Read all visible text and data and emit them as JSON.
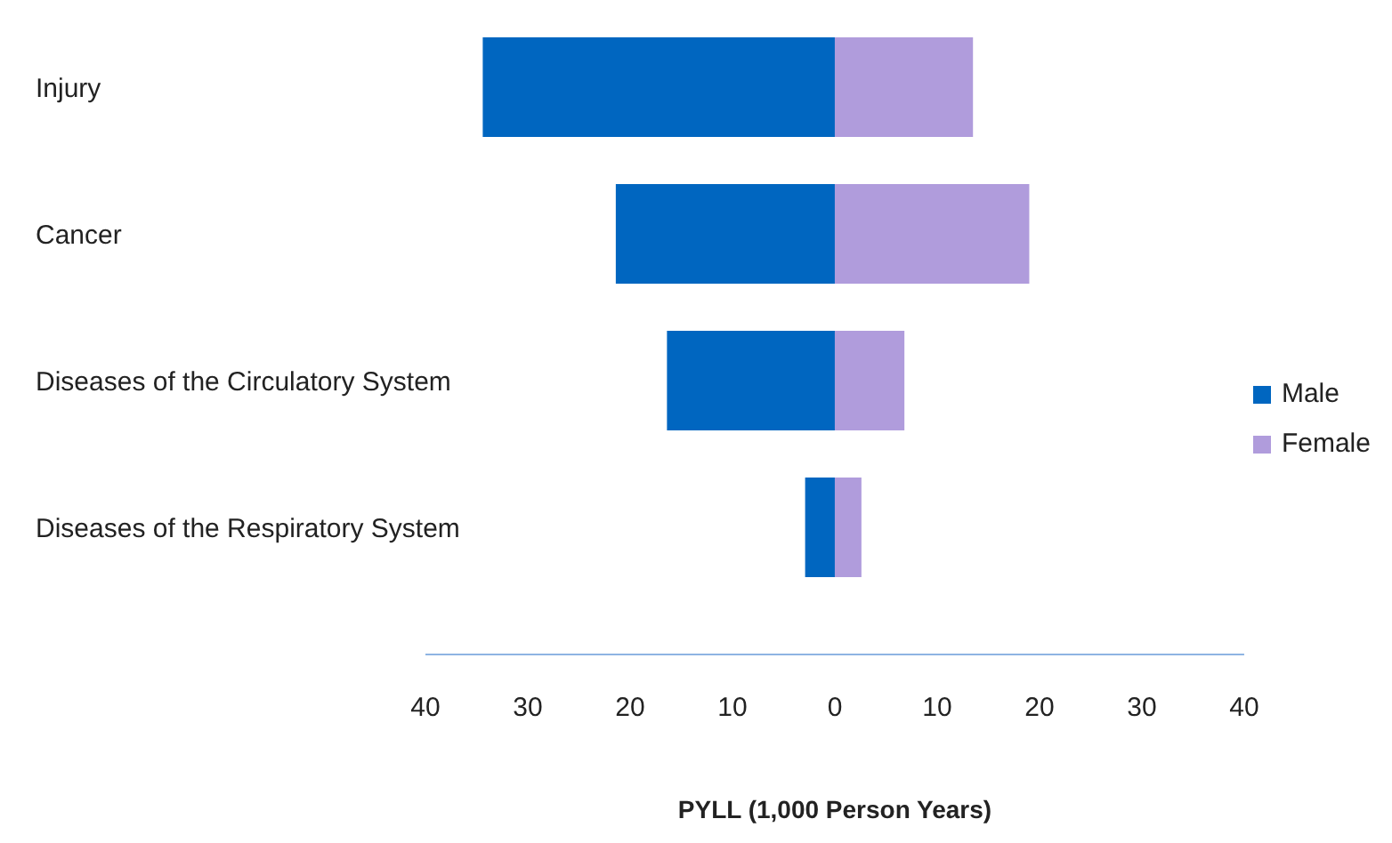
{
  "chart_data": {
    "type": "bar",
    "orientation": "horizontal",
    "stacked": true,
    "categories": [
      "Injury",
      "Cancer",
      "Diseases of the Circulatory System",
      "Diseases of the Respiratory System"
    ],
    "series": [
      {
        "name": "Male",
        "color": "#0066c0",
        "values": [
          -34.4,
          -21.4,
          -16.4,
          -2.9
        ]
      },
      {
        "name": "Female",
        "color": "#b09cdc",
        "values": [
          13.5,
          19.0,
          6.8,
          2.6
        ]
      }
    ],
    "xlabel": "PYLL (1,000 Person Years)",
    "xlim": [
      -40,
      40
    ],
    "xticks": [
      {
        "value": -40,
        "label": "40"
      },
      {
        "value": -30,
        "label": "30"
      },
      {
        "value": -20,
        "label": "20"
      },
      {
        "value": -10,
        "label": "10"
      },
      0,
      10,
      20,
      30,
      40
    ],
    "grid": false,
    "legend": "right"
  }
}
